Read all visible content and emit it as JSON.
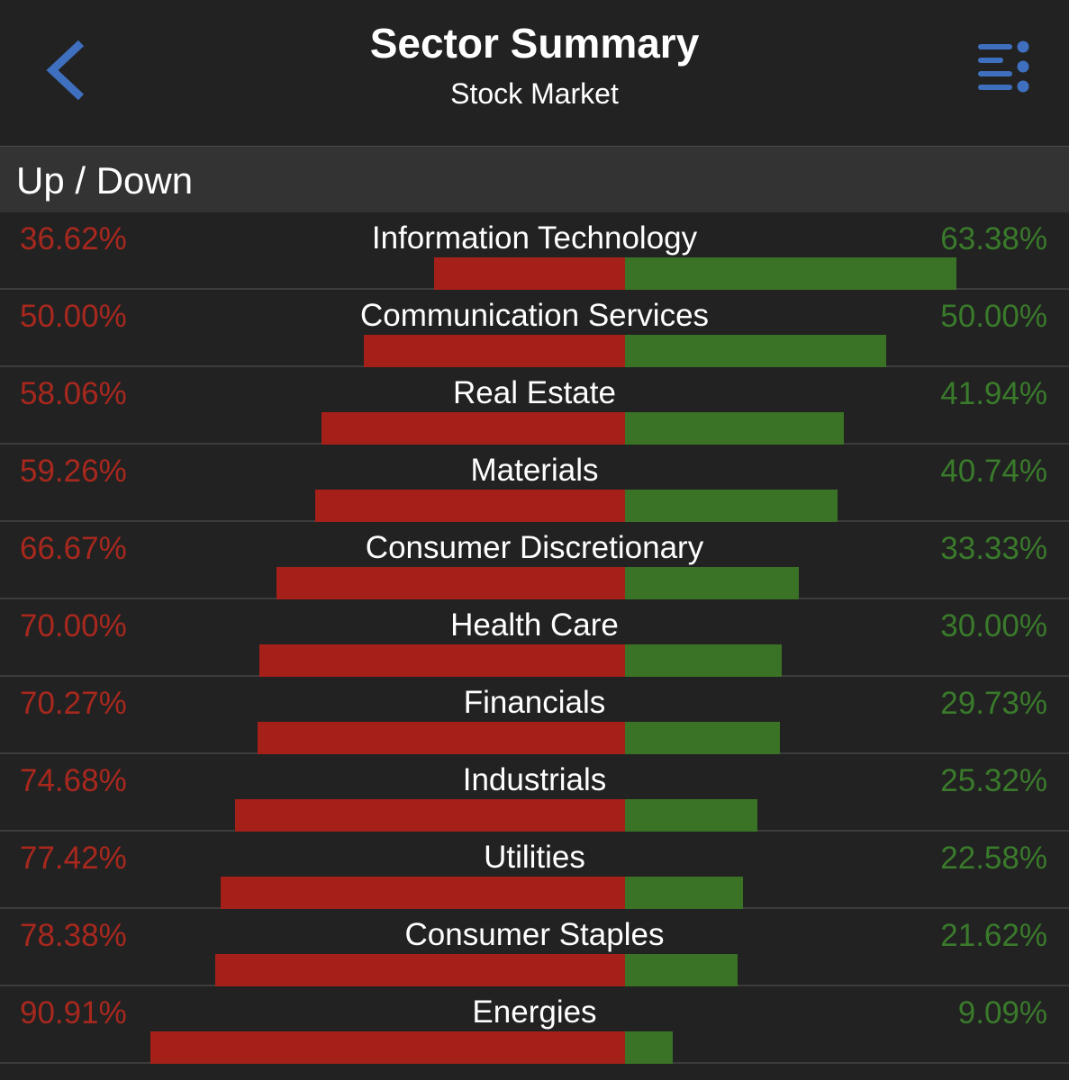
{
  "header": {
    "title": "Sector Summary",
    "subtitle": "Stock Market",
    "back_icon": "chevron-left-icon",
    "menu_icon": "list-menu-icon",
    "accent_color": "#3f6fbf"
  },
  "section": {
    "title": "Up / Down"
  },
  "colors": {
    "down": "#a52018",
    "up": "#3b7326",
    "down_text": "#a8281e",
    "up_text": "#3a7a2b"
  },
  "sectors": [
    {
      "name": "Information Technology",
      "down": "36.62%",
      "up": "63.38%",
      "down_value": 36.62,
      "up_value": 63.38
    },
    {
      "name": "Communication Services",
      "down": "50.00%",
      "up": "50.00%",
      "down_value": 50.0,
      "up_value": 50.0
    },
    {
      "name": "Real Estate",
      "down": "58.06%",
      "up": "41.94%",
      "down_value": 58.06,
      "up_value": 41.94
    },
    {
      "name": "Materials",
      "down": "59.26%",
      "up": "40.74%",
      "down_value": 59.26,
      "up_value": 40.74
    },
    {
      "name": "Consumer Discretionary",
      "down": "66.67%",
      "up": "33.33%",
      "down_value": 66.67,
      "up_value": 33.33
    },
    {
      "name": "Health Care",
      "down": "70.00%",
      "up": "30.00%",
      "down_value": 70.0,
      "up_value": 30.0
    },
    {
      "name": "Financials",
      "down": "70.27%",
      "up": "29.73%",
      "down_value": 70.27,
      "up_value": 29.73
    },
    {
      "name": "Industrials",
      "down": "74.68%",
      "up": "25.32%",
      "down_value": 74.68,
      "up_value": 25.32
    },
    {
      "name": "Utilities",
      "down": "77.42%",
      "up": "22.58%",
      "down_value": 77.42,
      "up_value": 22.58
    },
    {
      "name": "Consumer Staples",
      "down": "78.38%",
      "up": "21.62%",
      "down_value": 78.38,
      "up_value": 21.62
    },
    {
      "name": "Energies",
      "down": "90.91%",
      "up": "9.09%",
      "down_value": 90.91,
      "up_value": 9.09
    }
  ]
}
